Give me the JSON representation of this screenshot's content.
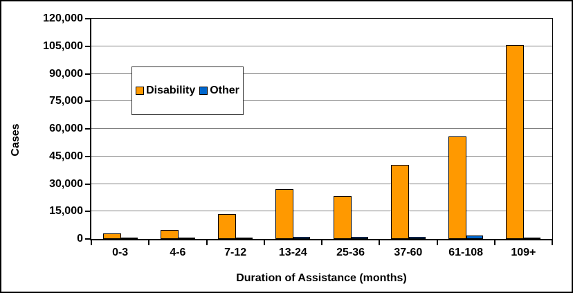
{
  "chart_data": {
    "type": "bar",
    "title": "",
    "xlabel": "Duration of Assistance (months)",
    "ylabel": "Cases",
    "categories": [
      "0-3",
      "4-6",
      "7-12",
      "13-24",
      "25-36",
      "37-60",
      "61-108",
      "109+"
    ],
    "series": [
      {
        "name": "Disability",
        "color": "#FF9900",
        "values": [
          3000,
          5000,
          13500,
          27000,
          23500,
          40500,
          56000,
          105500
        ]
      },
      {
        "name": "Other",
        "color": "#0066CC",
        "values": [
          400,
          400,
          700,
          1200,
          1000,
          1000,
          2000,
          500
        ]
      }
    ],
    "ylim": [
      0,
      120000
    ],
    "ytick_step": 15000,
    "ytick_labels": [
      "0",
      "15,000",
      "30,000",
      "45,000",
      "60,000",
      "75,000",
      "90,000",
      "105,000",
      "120,000"
    ],
    "grid": "horizontal",
    "gridline_color": "#808080",
    "bar_outline_color": "#000000",
    "legend_position": "upper-left-inside",
    "background_color": "#FFFFFF",
    "frame_color": "#000000"
  }
}
